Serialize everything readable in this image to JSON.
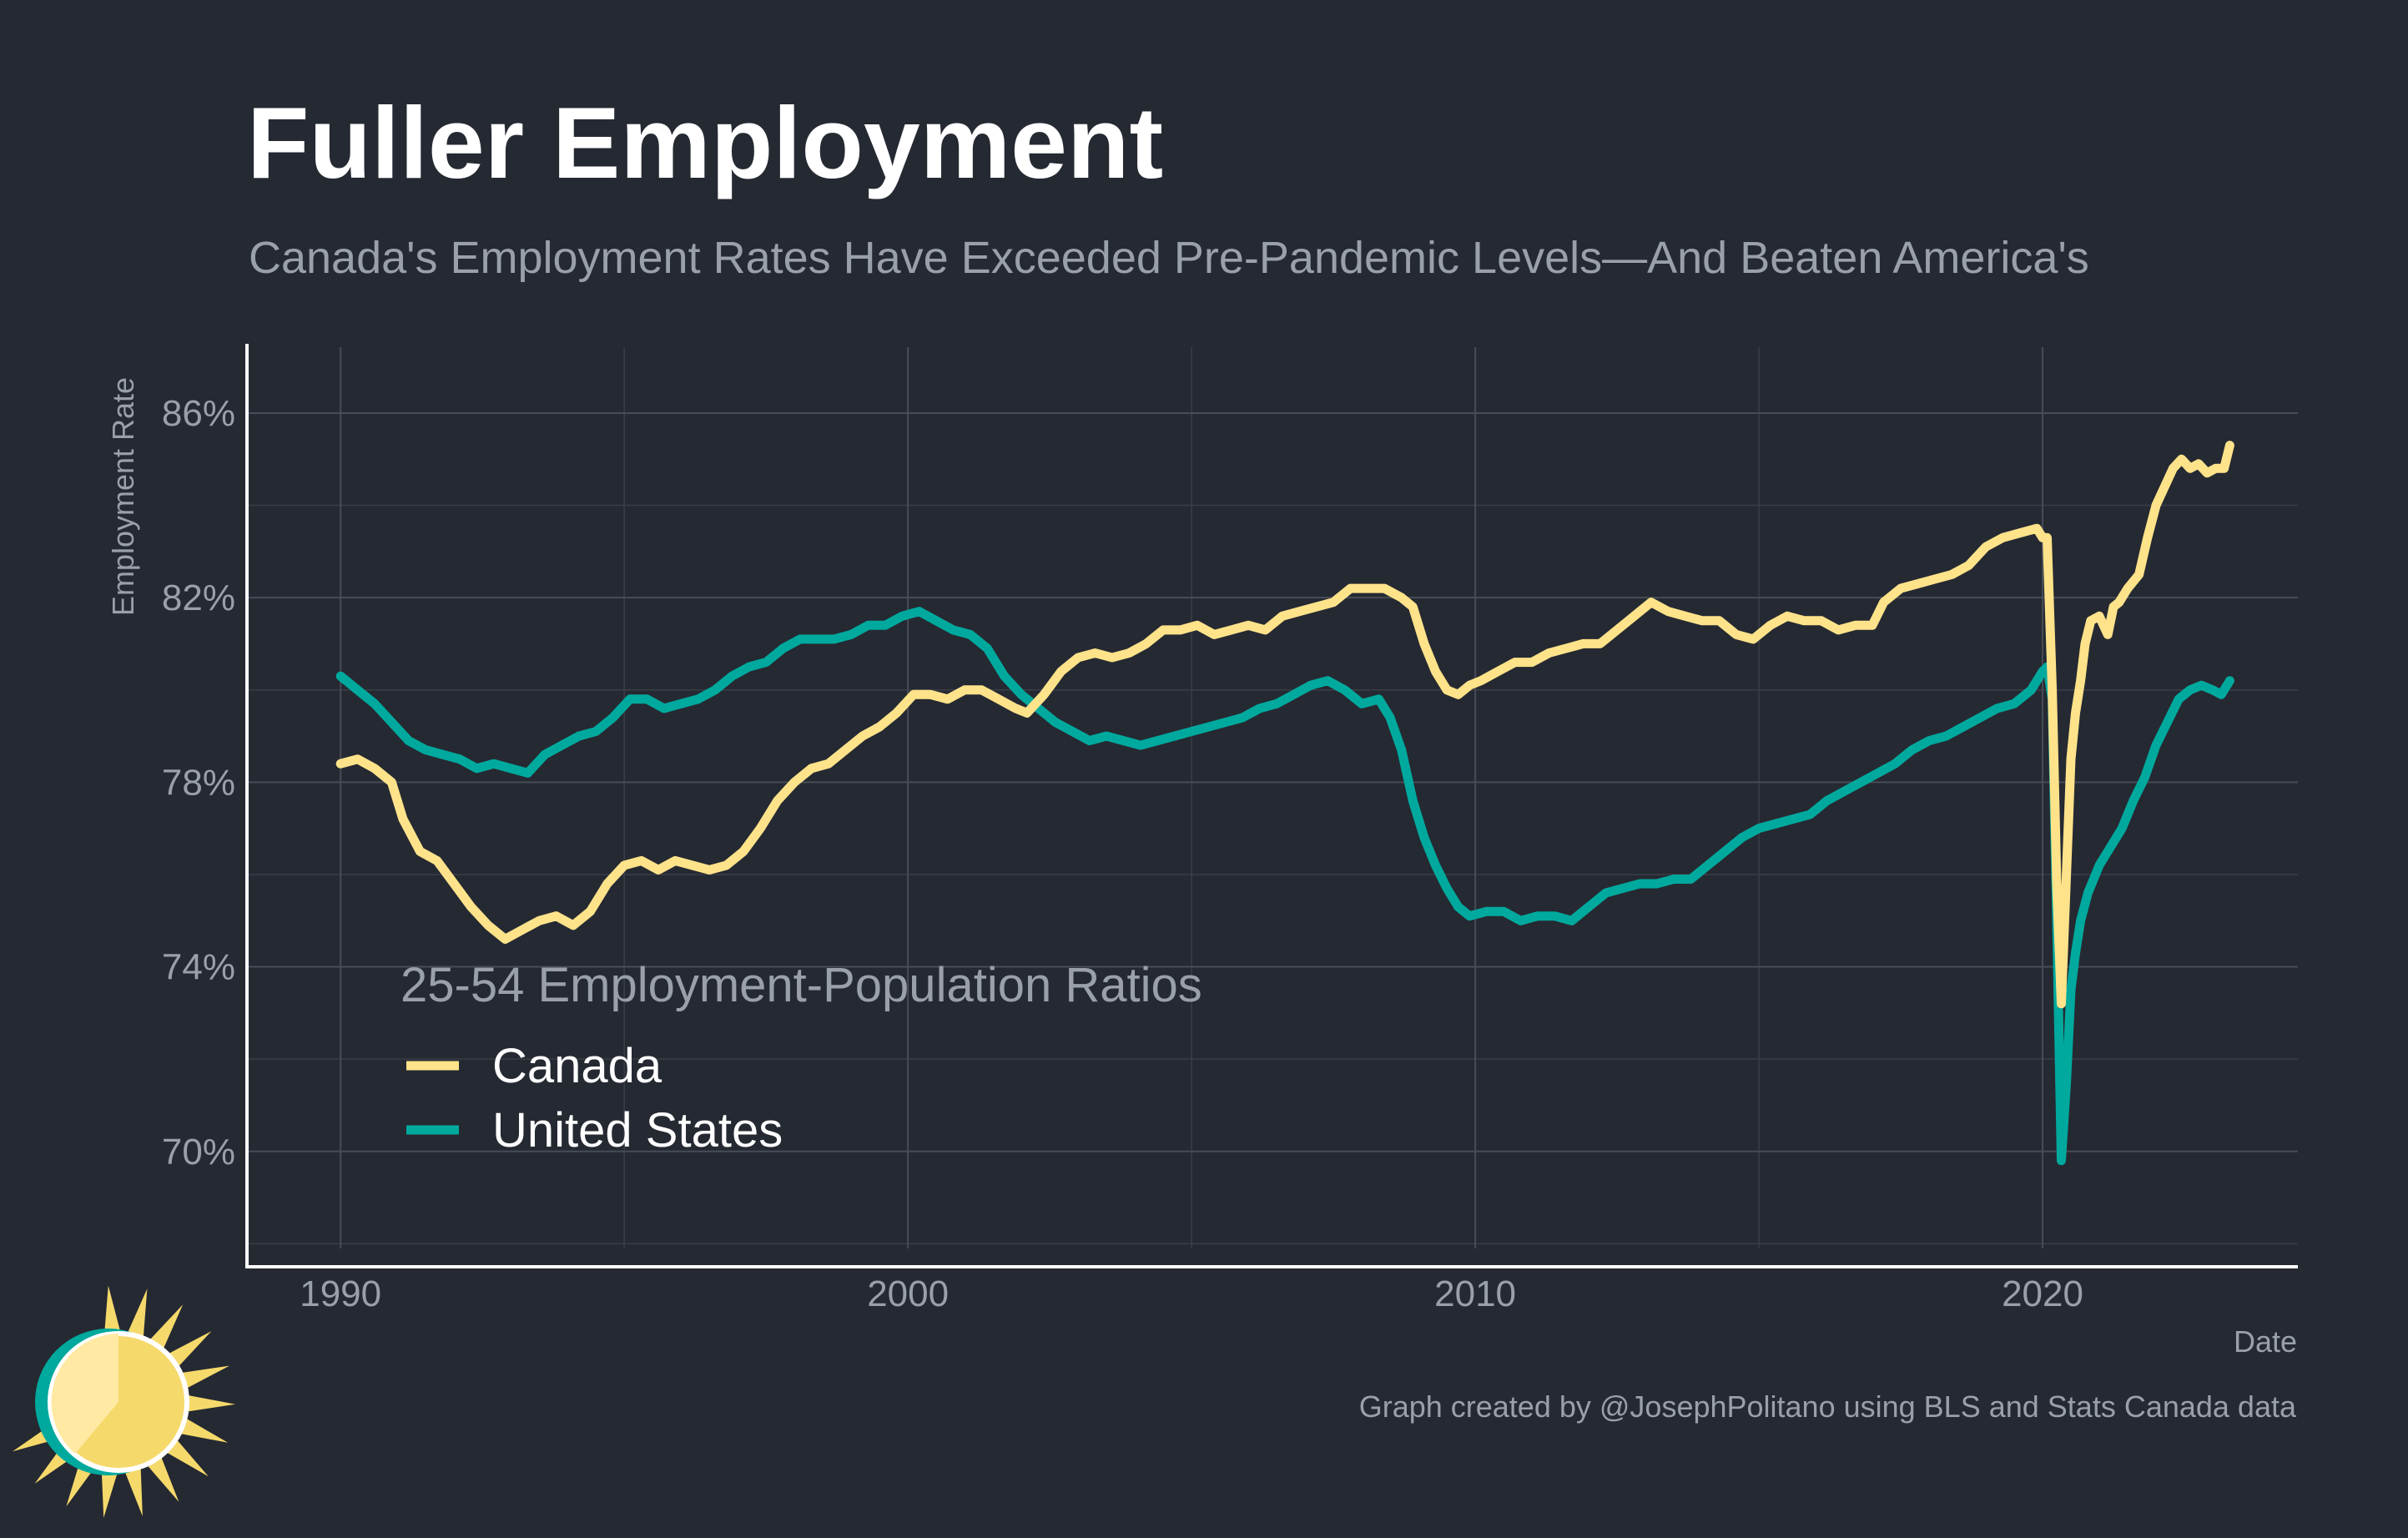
{
  "title": "Fuller Employment",
  "subtitle": "Canada's Employment Rates Have Exceeded Pre-Pandemic Levels—And Beaten America's",
  "caption": "Graph created by @JosephPolitano using BLS and Stats Canada data",
  "chart_data": {
    "type": "line",
    "xlabel": "Date",
    "ylabel": "Employment Rate",
    "xlim": [
      1988.35,
      2024.5
    ],
    "ylim": [
      67.5,
      87.5
    ],
    "x_ticks": [
      {
        "value": 1990,
        "label": "1990"
      },
      {
        "value": 2000,
        "label": "2000"
      },
      {
        "value": 2010,
        "label": "2010"
      },
      {
        "value": 2020,
        "label": "2020"
      }
    ],
    "y_ticks": [
      {
        "value": 70,
        "label": "70%"
      },
      {
        "value": 74,
        "label": "74%"
      },
      {
        "value": 78,
        "label": "78%"
      },
      {
        "value": 82,
        "label": "82%"
      },
      {
        "value": 86,
        "label": "86%"
      }
    ],
    "grid": true,
    "legend": {
      "title": "25-54 Employment-Population Ratios",
      "position": "bottom-left"
    },
    "series": [
      {
        "name": "Canada",
        "color": "#ffe38a",
        "points": [
          [
            1990.0,
            78.4
          ],
          [
            1990.3,
            78.5
          ],
          [
            1990.6,
            78.3
          ],
          [
            1990.9,
            78.0
          ],
          [
            1991.1,
            77.2
          ],
          [
            1991.4,
            76.5
          ],
          [
            1991.7,
            76.3
          ],
          [
            1992.0,
            75.8
          ],
          [
            1992.3,
            75.3
          ],
          [
            1992.6,
            74.9
          ],
          [
            1992.9,
            74.6
          ],
          [
            1993.2,
            74.8
          ],
          [
            1993.5,
            75.0
          ],
          [
            1993.8,
            75.1
          ],
          [
            1994.1,
            74.9
          ],
          [
            1994.4,
            75.2
          ],
          [
            1994.7,
            75.8
          ],
          [
            1995.0,
            76.2
          ],
          [
            1995.3,
            76.3
          ],
          [
            1995.6,
            76.1
          ],
          [
            1995.9,
            76.3
          ],
          [
            1996.2,
            76.2
          ],
          [
            1996.5,
            76.1
          ],
          [
            1996.8,
            76.2
          ],
          [
            1997.1,
            76.5
          ],
          [
            1997.4,
            77.0
          ],
          [
            1997.7,
            77.6
          ],
          [
            1998.0,
            78.0
          ],
          [
            1998.3,
            78.3
          ],
          [
            1998.6,
            78.4
          ],
          [
            1998.9,
            78.7
          ],
          [
            1999.2,
            79.0
          ],
          [
            1999.5,
            79.2
          ],
          [
            1999.8,
            79.5
          ],
          [
            2000.1,
            79.9
          ],
          [
            2000.4,
            79.9
          ],
          [
            2000.7,
            79.8
          ],
          [
            2001.0,
            80.0
          ],
          [
            2001.3,
            80.0
          ],
          [
            2001.6,
            79.8
          ],
          [
            2001.9,
            79.6
          ],
          [
            2002.1,
            79.5
          ],
          [
            2002.4,
            79.9
          ],
          [
            2002.7,
            80.4
          ],
          [
            2003.0,
            80.7
          ],
          [
            2003.3,
            80.8
          ],
          [
            2003.6,
            80.7
          ],
          [
            2003.9,
            80.8
          ],
          [
            2004.2,
            81.0
          ],
          [
            2004.5,
            81.3
          ],
          [
            2004.8,
            81.3
          ],
          [
            2005.1,
            81.4
          ],
          [
            2005.4,
            81.2
          ],
          [
            2005.7,
            81.3
          ],
          [
            2006.0,
            81.4
          ],
          [
            2006.3,
            81.3
          ],
          [
            2006.6,
            81.6
          ],
          [
            2006.9,
            81.7
          ],
          [
            2007.2,
            81.8
          ],
          [
            2007.5,
            81.9
          ],
          [
            2007.8,
            82.2
          ],
          [
            2008.1,
            82.2
          ],
          [
            2008.4,
            82.2
          ],
          [
            2008.7,
            82.0
          ],
          [
            2008.9,
            81.8
          ],
          [
            2009.1,
            81.0
          ],
          [
            2009.3,
            80.4
          ],
          [
            2009.5,
            80.0
          ],
          [
            2009.7,
            79.9
          ],
          [
            2009.9,
            80.1
          ],
          [
            2010.1,
            80.2
          ],
          [
            2010.4,
            80.4
          ],
          [
            2010.7,
            80.6
          ],
          [
            2011.0,
            80.6
          ],
          [
            2011.3,
            80.8
          ],
          [
            2011.6,
            80.9
          ],
          [
            2011.9,
            81.0
          ],
          [
            2012.2,
            81.0
          ],
          [
            2012.5,
            81.3
          ],
          [
            2012.8,
            81.6
          ],
          [
            2013.1,
            81.9
          ],
          [
            2013.4,
            81.7
          ],
          [
            2013.7,
            81.6
          ],
          [
            2014.0,
            81.5
          ],
          [
            2014.3,
            81.5
          ],
          [
            2014.6,
            81.2
          ],
          [
            2014.9,
            81.1
          ],
          [
            2015.2,
            81.4
          ],
          [
            2015.5,
            81.6
          ],
          [
            2015.8,
            81.5
          ],
          [
            2016.1,
            81.5
          ],
          [
            2016.4,
            81.3
          ],
          [
            2016.7,
            81.4
          ],
          [
            2017.0,
            81.4
          ],
          [
            2017.2,
            81.9
          ],
          [
            2017.5,
            82.2
          ],
          [
            2017.8,
            82.3
          ],
          [
            2018.1,
            82.4
          ],
          [
            2018.4,
            82.5
          ],
          [
            2018.7,
            82.7
          ],
          [
            2019.0,
            83.1
          ],
          [
            2019.3,
            83.3
          ],
          [
            2019.6,
            83.4
          ],
          [
            2019.9,
            83.5
          ],
          [
            2020.0,
            83.3
          ],
          [
            2020.08,
            83.3
          ],
          [
            2020.17,
            80.0
          ],
          [
            2020.25,
            75.8
          ],
          [
            2020.33,
            73.2
          ],
          [
            2020.42,
            76.0
          ],
          [
            2020.5,
            78.5
          ],
          [
            2020.58,
            79.5
          ],
          [
            2020.67,
            80.2
          ],
          [
            2020.75,
            81.0
          ],
          [
            2020.85,
            81.5
          ],
          [
            2021.0,
            81.6
          ],
          [
            2021.15,
            81.2
          ],
          [
            2021.25,
            81.8
          ],
          [
            2021.35,
            81.9
          ],
          [
            2021.5,
            82.2
          ],
          [
            2021.7,
            82.5
          ],
          [
            2021.85,
            83.3
          ],
          [
            2022.0,
            84.0
          ],
          [
            2022.15,
            84.4
          ],
          [
            2022.3,
            84.8
          ],
          [
            2022.45,
            85.0
          ],
          [
            2022.6,
            84.8
          ],
          [
            2022.75,
            84.9
          ],
          [
            2022.9,
            84.7
          ],
          [
            2023.05,
            84.8
          ],
          [
            2023.2,
            84.8
          ],
          [
            2023.3,
            85.3
          ]
        ]
      },
      {
        "name": "United States",
        "color": "#00a99d",
        "points": [
          [
            1990.0,
            80.3
          ],
          [
            1990.3,
            80.0
          ],
          [
            1990.6,
            79.7
          ],
          [
            1990.9,
            79.3
          ],
          [
            1991.2,
            78.9
          ],
          [
            1991.5,
            78.7
          ],
          [
            1991.8,
            78.6
          ],
          [
            1992.1,
            78.5
          ],
          [
            1992.4,
            78.3
          ],
          [
            1992.7,
            78.4
          ],
          [
            1993.0,
            78.3
          ],
          [
            1993.3,
            78.2
          ],
          [
            1993.6,
            78.6
          ],
          [
            1993.9,
            78.8
          ],
          [
            1994.2,
            79.0
          ],
          [
            1994.5,
            79.1
          ],
          [
            1994.8,
            79.4
          ],
          [
            1995.1,
            79.8
          ],
          [
            1995.4,
            79.8
          ],
          [
            1995.7,
            79.6
          ],
          [
            1996.0,
            79.7
          ],
          [
            1996.3,
            79.8
          ],
          [
            1996.6,
            80.0
          ],
          [
            1996.9,
            80.3
          ],
          [
            1997.2,
            80.5
          ],
          [
            1997.5,
            80.6
          ],
          [
            1997.8,
            80.9
          ],
          [
            1998.1,
            81.1
          ],
          [
            1998.4,
            81.1
          ],
          [
            1998.7,
            81.1
          ],
          [
            1999.0,
            81.2
          ],
          [
            1999.3,
            81.4
          ],
          [
            1999.6,
            81.4
          ],
          [
            1999.9,
            81.6
          ],
          [
            2000.2,
            81.7
          ],
          [
            2000.5,
            81.5
          ],
          [
            2000.8,
            81.3
          ],
          [
            2001.1,
            81.2
          ],
          [
            2001.4,
            80.9
          ],
          [
            2001.7,
            80.3
          ],
          [
            2002.0,
            79.9
          ],
          [
            2002.3,
            79.6
          ],
          [
            2002.6,
            79.3
          ],
          [
            2002.9,
            79.1
          ],
          [
            2003.2,
            78.9
          ],
          [
            2003.5,
            79.0
          ],
          [
            2003.8,
            78.9
          ],
          [
            2004.1,
            78.8
          ],
          [
            2004.4,
            78.9
          ],
          [
            2004.7,
            79.0
          ],
          [
            2005.0,
            79.1
          ],
          [
            2005.3,
            79.2
          ],
          [
            2005.6,
            79.3
          ],
          [
            2005.9,
            79.4
          ],
          [
            2006.2,
            79.6
          ],
          [
            2006.5,
            79.7
          ],
          [
            2006.8,
            79.9
          ],
          [
            2007.1,
            80.1
          ],
          [
            2007.4,
            80.2
          ],
          [
            2007.7,
            80.0
          ],
          [
            2008.0,
            79.7
          ],
          [
            2008.3,
            79.8
          ],
          [
            2008.5,
            79.4
          ],
          [
            2008.7,
            78.7
          ],
          [
            2008.9,
            77.6
          ],
          [
            2009.1,
            76.8
          ],
          [
            2009.3,
            76.2
          ],
          [
            2009.5,
            75.7
          ],
          [
            2009.7,
            75.3
          ],
          [
            2009.9,
            75.1
          ],
          [
            2010.2,
            75.2
          ],
          [
            2010.5,
            75.2
          ],
          [
            2010.8,
            75.0
          ],
          [
            2011.1,
            75.1
          ],
          [
            2011.4,
            75.1
          ],
          [
            2011.7,
            75.0
          ],
          [
            2012.0,
            75.3
          ],
          [
            2012.3,
            75.6
          ],
          [
            2012.6,
            75.7
          ],
          [
            2012.9,
            75.8
          ],
          [
            2013.2,
            75.8
          ],
          [
            2013.5,
            75.9
          ],
          [
            2013.8,
            75.9
          ],
          [
            2014.1,
            76.2
          ],
          [
            2014.4,
            76.5
          ],
          [
            2014.7,
            76.8
          ],
          [
            2015.0,
            77.0
          ],
          [
            2015.3,
            77.1
          ],
          [
            2015.6,
            77.2
          ],
          [
            2015.9,
            77.3
          ],
          [
            2016.2,
            77.6
          ],
          [
            2016.5,
            77.8
          ],
          [
            2016.8,
            78.0
          ],
          [
            2017.1,
            78.2
          ],
          [
            2017.4,
            78.4
          ],
          [
            2017.7,
            78.7
          ],
          [
            2018.0,
            78.9
          ],
          [
            2018.3,
            79.0
          ],
          [
            2018.6,
            79.2
          ],
          [
            2018.9,
            79.4
          ],
          [
            2019.2,
            79.6
          ],
          [
            2019.5,
            79.7
          ],
          [
            2019.8,
            80.0
          ],
          [
            2020.0,
            80.4
          ],
          [
            2020.08,
            80.5
          ],
          [
            2020.17,
            79.8
          ],
          [
            2020.25,
            75.0
          ],
          [
            2020.33,
            69.8
          ],
          [
            2020.42,
            71.5
          ],
          [
            2020.5,
            73.5
          ],
          [
            2020.58,
            74.3
          ],
          [
            2020.67,
            75.0
          ],
          [
            2020.8,
            75.6
          ],
          [
            2021.0,
            76.2
          ],
          [
            2021.2,
            76.6
          ],
          [
            2021.4,
            77.0
          ],
          [
            2021.6,
            77.6
          ],
          [
            2021.8,
            78.1
          ],
          [
            2022.0,
            78.8
          ],
          [
            2022.2,
            79.3
          ],
          [
            2022.4,
            79.8
          ],
          [
            2022.6,
            80.0
          ],
          [
            2022.8,
            80.1
          ],
          [
            2023.0,
            80.0
          ],
          [
            2023.15,
            79.9
          ],
          [
            2023.3,
            80.2
          ]
        ]
      }
    ]
  }
}
